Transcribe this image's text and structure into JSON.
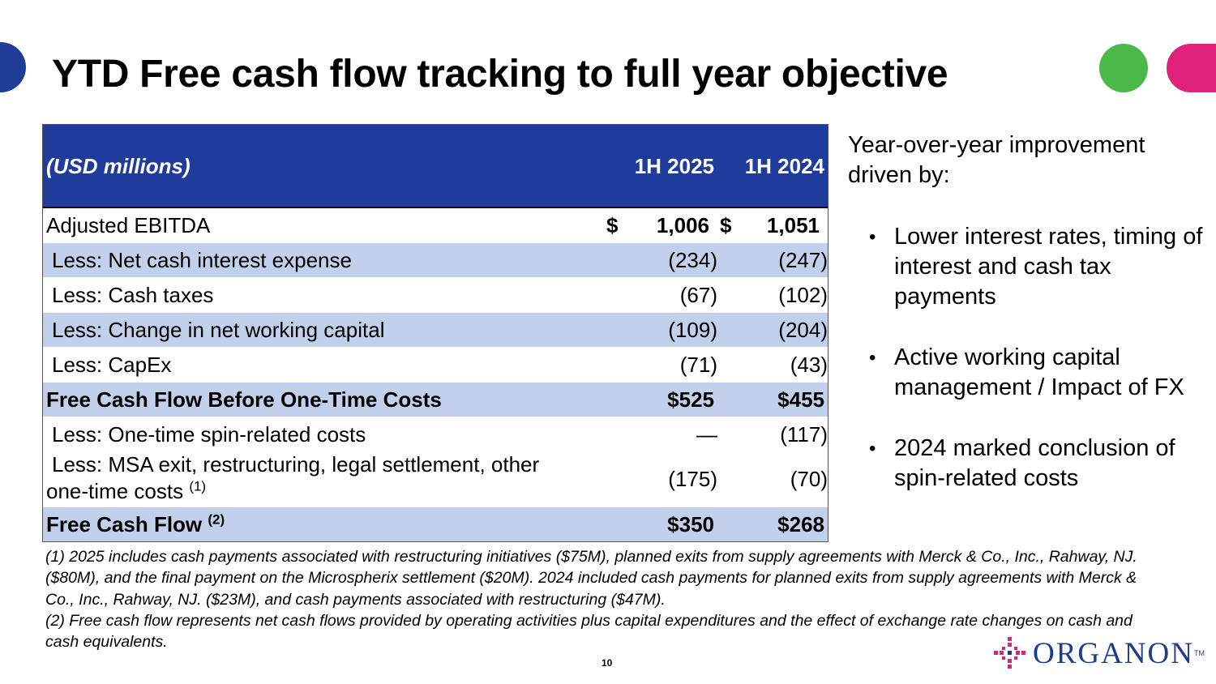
{
  "slide": {
    "title": "YTD Free cash flow tracking to full year objective",
    "page_number": "10",
    "brand_colors": {
      "blue": "#1f3b9b",
      "green": "#4ab94a",
      "pink": "#e0217a",
      "row_alt": "#c3d0ec"
    }
  },
  "table": {
    "header": {
      "label": "(USD millions)",
      "col1": "1H 2025",
      "col2": "1H 2024"
    },
    "rows": [
      {
        "label": "Adjusted EBITDA",
        "cur1": "$",
        "v1": "1,006",
        "cur2": "$",
        "v2": "1,051"
      },
      {
        "label": "Less: Net cash interest expense",
        "v1": "(234)",
        "v2": "(247)"
      },
      {
        "label": "Less: Cash taxes",
        "v1": "(67)",
        "v2": "(102)"
      },
      {
        "label": "Less: Change in net working capital",
        "v1": "(109)",
        "v2": "(204)"
      },
      {
        "label": "Less: CapEx",
        "v1": "(71)",
        "v2": "(43)"
      },
      {
        "label": "Free Cash Flow Before One-Time Costs",
        "v1": "$525",
        "v2": "$455"
      },
      {
        "label": "Less: One-time spin-related costs",
        "v1": "—",
        "v2": "(117)"
      },
      {
        "label_line1": "Less: MSA exit, restructuring, legal settlement, other",
        "label_line2": "one-time costs",
        "footnote": "(1)",
        "v1": "(175)",
        "v2": "(70)"
      },
      {
        "label": "Free Cash Flow",
        "footnote": "(2)",
        "v1": "$350",
        "v2": "$268"
      }
    ]
  },
  "sidebar": {
    "intro": "Year-over-year improvement driven by:",
    "bullets": [
      "Lower interest rates, timing of interest and cash tax payments",
      "Active working capital management / Impact of FX",
      "2024 marked conclusion of spin-related costs"
    ]
  },
  "footnotes": {
    "note1": "(1) 2025 includes cash payments associated with restructuring initiatives ($75M), planned exits from supply agreements with Merck & Co., Inc., Rahway, NJ. ($80M), and the final payment on the Microspherix settlement ($20M). 2024 included cash payments for planned exits from supply agreements with Merck & Co., Inc., Rahway, NJ. ($23M), and cash payments associated with restructuring ($47M).",
    "note2": "(2) Free cash flow represents net cash flows provided by operating activities plus capital expenditures and the effect of exchange rate changes on cash and cash equivalents."
  },
  "logo": {
    "text": "ORGANON",
    "tm": "TM"
  }
}
